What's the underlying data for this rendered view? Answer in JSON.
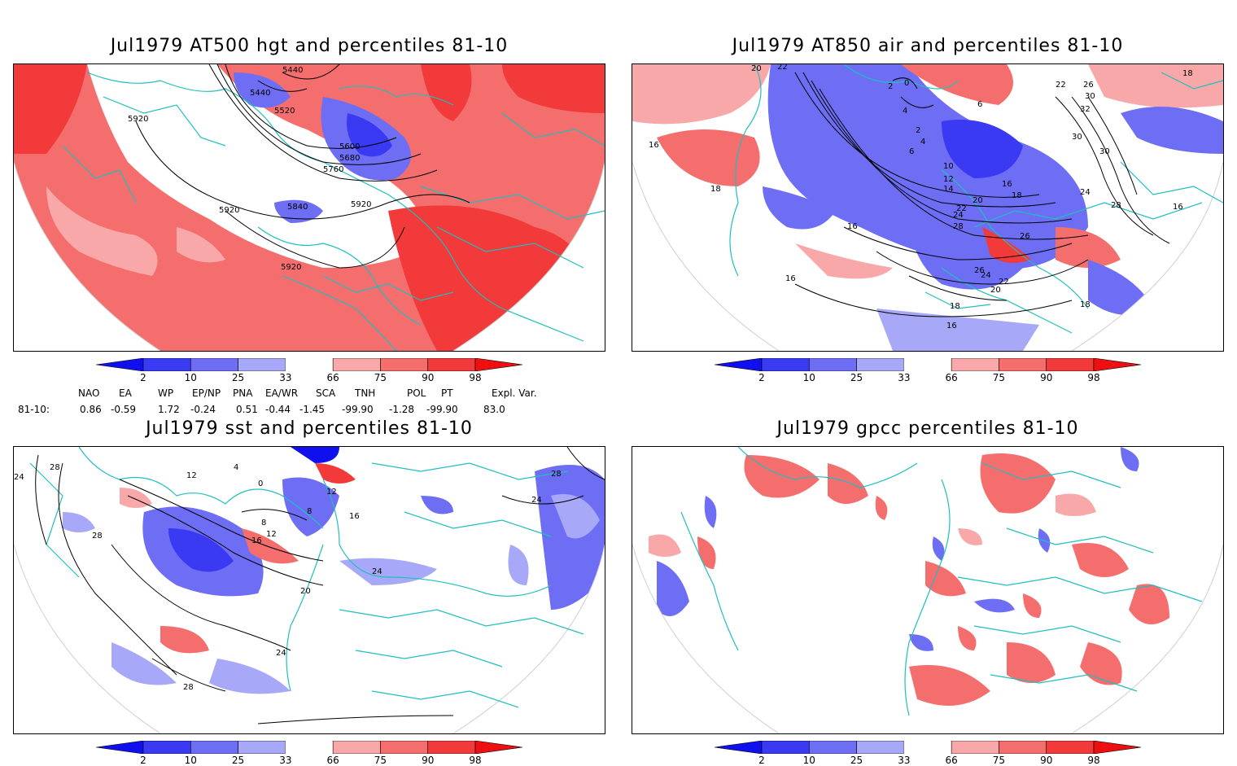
{
  "panels": [
    {
      "id": "p1",
      "title": "Jul1979 AT500 hgt and percentiles 81-10",
      "contour_labels": [
        "5440",
        "5440",
        "5520",
        "5920",
        "5600",
        "5680",
        "5760",
        "5840",
        "5920",
        "5920",
        "5920"
      ]
    },
    {
      "id": "p2",
      "title": "Jul1979 AT850 air and percentiles 81-10",
      "contour_labels": [
        "20",
        "22",
        "2",
        "0",
        "4",
        "6",
        "2",
        "4",
        "6",
        "22",
        "26",
        "30",
        "32",
        "30",
        "30",
        "18",
        "16",
        "18",
        "10",
        "12",
        "14",
        "16",
        "18",
        "20",
        "22",
        "24",
        "28",
        "26",
        "24",
        "28",
        "16",
        "16",
        "16",
        "26",
        "24",
        "22",
        "20",
        "18",
        "18",
        "16"
      ]
    },
    {
      "id": "p3",
      "title": "Jul1979 sst and percentiles 81-10",
      "contour_labels": [
        "24",
        "28",
        "28",
        "28",
        "12",
        "4",
        "0",
        "8",
        "12",
        "16",
        "20",
        "24",
        "8",
        "12",
        "16",
        "24",
        "28",
        "24"
      ]
    },
    {
      "id": "p4",
      "title": "Jul1979 gpcc percentiles 81-10",
      "contour_labels": []
    }
  ],
  "colorbar": {
    "labels": [
      "2",
      "10",
      "25",
      "33",
      "66",
      "75",
      "90",
      "98"
    ],
    "colors": {
      "below_2": "#1010ee",
      "b2_10": "#3a3af2",
      "b10_25": "#6e6ef5",
      "b25_33": "#a8a8f8",
      "b66_75": "#f8a8a8",
      "b75_90": "#f56e6e",
      "b90_98": "#f23a3a",
      "above_98": "#ee1010"
    }
  },
  "teleconnections": {
    "header": [
      "NAO",
      "EA",
      "WP",
      "EP/NP",
      "PNA",
      "EA/WR",
      "SCA",
      "TNH",
      "POL",
      "PT",
      "Expl. Var."
    ],
    "row_label": "81-10:",
    "values": [
      "0.86",
      "-0.59",
      "1.72",
      "-0.24",
      "0.51",
      "-0.44",
      "-1.45",
      "-99.90",
      "-1.28",
      "-99.90",
      "83.0"
    ]
  },
  "colors": {
    "coast": "#1fbfbf",
    "contour": "#000000",
    "red_light": "#f8a8a8",
    "red_mid": "#f56e6e",
    "red_strong": "#f23a3a",
    "blue_light": "#a8a8f8",
    "blue_mid": "#6e6ef5",
    "blue_strong": "#3a3af2"
  }
}
